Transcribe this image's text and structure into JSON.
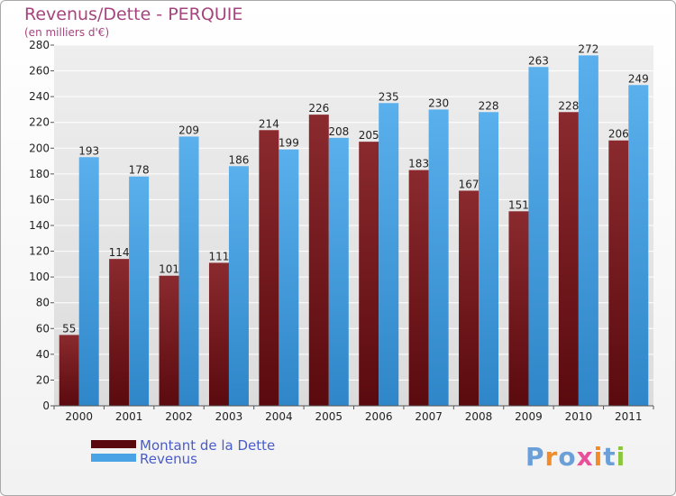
{
  "chart_data": {
    "type": "bar",
    "title": "Revenus/Dette - PERQUIE",
    "subtitle": "(en milliers d'€)",
    "xlabel": "",
    "ylabel": "",
    "categories": [
      "2000",
      "2001",
      "2002",
      "2003",
      "2004",
      "2005",
      "2006",
      "2007",
      "2008",
      "2009",
      "2010",
      "2011"
    ],
    "series": [
      {
        "name": "Montant de la Dette",
        "color": "#7a1a1f",
        "values": [
          55,
          114,
          101,
          111,
          214,
          226,
          205,
          183,
          167,
          151,
          228,
          206
        ]
      },
      {
        "name": "Revenus",
        "color": "#4aa3e4",
        "values": [
          193,
          178,
          209,
          186,
          199,
          208,
          235,
          230,
          228,
          263,
          272,
          249
        ]
      }
    ],
    "ylim": [
      0,
      280
    ],
    "yticks": [
      0,
      20,
      40,
      60,
      80,
      100,
      120,
      140,
      160,
      180,
      200,
      220,
      240,
      260,
      280
    ],
    "grid": true,
    "legend_position": "bottom-left"
  },
  "branding": {
    "logo_letters": [
      "P",
      "r",
      "o",
      "x",
      "i",
      "t",
      "i"
    ],
    "logo_colors": [
      "#6a9fd8",
      "#f28c28",
      "#6a9fd8",
      "#e94f9a",
      "#f28c28",
      "#6a9fd8",
      "#8cc63f"
    ]
  }
}
